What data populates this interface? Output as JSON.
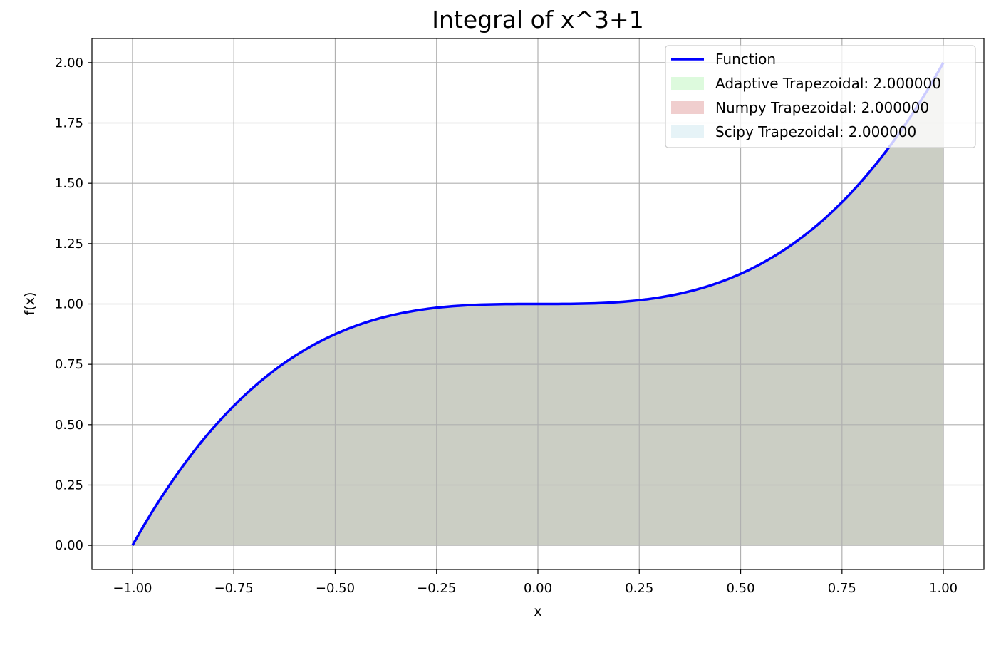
{
  "chart_data": {
    "type": "area",
    "title": "Integral of x^3+1",
    "xlabel": "x",
    "ylabel": "f(x)",
    "xlim": [
      -1.1,
      1.1
    ],
    "ylim": [
      -0.1,
      2.1
    ],
    "xticks": [
      -1.0,
      -0.75,
      -0.5,
      -0.25,
      0.0,
      0.25,
      0.5,
      0.75,
      1.0
    ],
    "xtick_labels": [
      "−1.00",
      "−0.75",
      "−0.50",
      "−0.25",
      "0.00",
      "0.25",
      "0.50",
      "0.75",
      "1.00"
    ],
    "yticks": [
      0.0,
      0.25,
      0.5,
      0.75,
      1.0,
      1.25,
      1.5,
      1.75,
      2.0
    ],
    "ytick_labels": [
      "0.00",
      "0.25",
      "0.50",
      "0.75",
      "1.00",
      "1.25",
      "1.50",
      "1.75",
      "2.00"
    ],
    "grid": true,
    "legend_position": "top-right",
    "function": {
      "name": "Function",
      "color": "#0000ff",
      "x": [
        -1.0,
        -0.875,
        -0.75,
        -0.625,
        -0.5,
        -0.375,
        -0.25,
        -0.125,
        0.0,
        0.125,
        0.25,
        0.375,
        0.5,
        0.625,
        0.75,
        0.875,
        1.0
      ],
      "y": [
        0.0,
        0.33,
        0.578,
        0.756,
        0.875,
        0.947,
        0.984,
        0.998,
        1.0,
        1.002,
        1.016,
        1.053,
        1.125,
        1.244,
        1.422,
        1.67,
        2.0
      ]
    },
    "fills": [
      {
        "name": "Adaptive Trapezoidal: 2.000000",
        "color": "#90ee90",
        "alpha": 0.3
      },
      {
        "name": "Numpy Trapezoidal: 2.000000",
        "color": "#cd5c5c",
        "alpha": 0.3
      },
      {
        "name": "Scipy Trapezoidal: 2.000000",
        "color": "#add8e6",
        "alpha": 0.3
      }
    ]
  }
}
